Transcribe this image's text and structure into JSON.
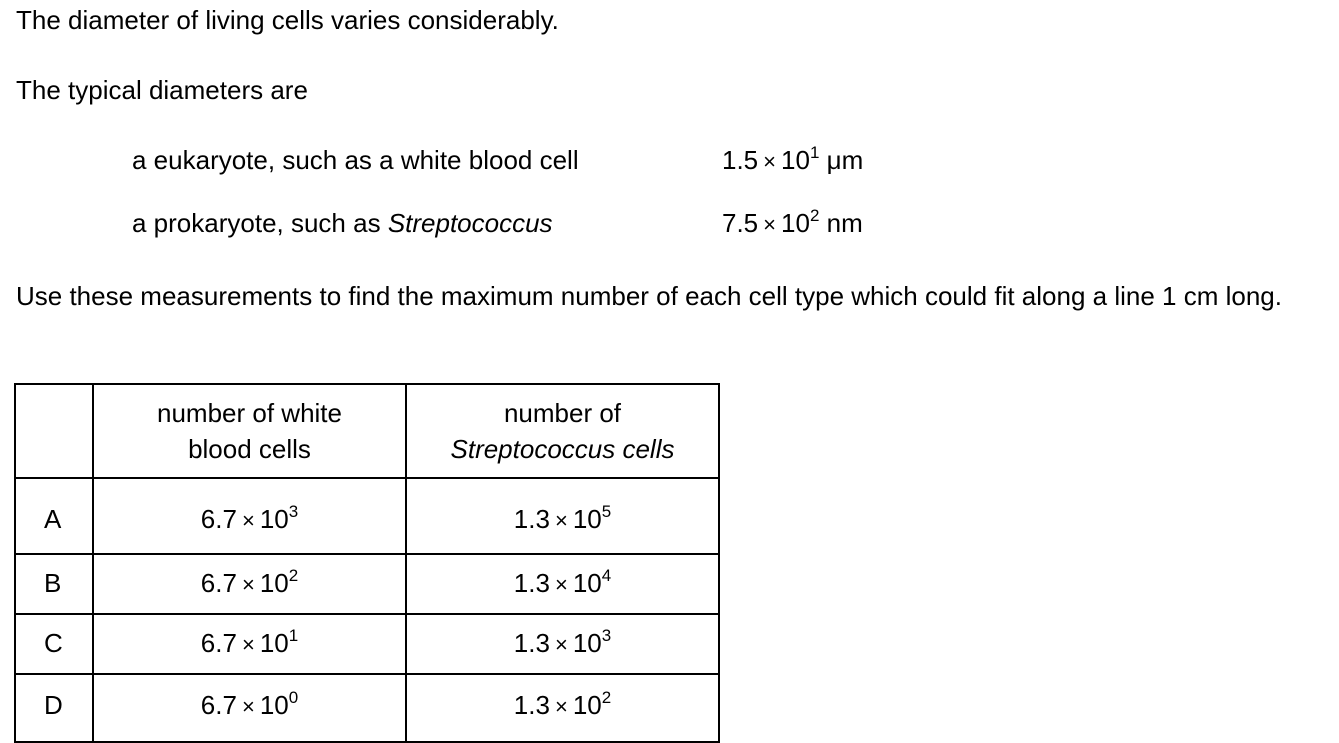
{
  "intro": "The diameter of living cells varies considerably.",
  "typical_intro": "The typical diameters are",
  "cells": [
    {
      "desc": "a eukaryote, such as a white blood cell",
      "desc_prefix": "",
      "desc_italic": "",
      "mantissa": "1.5",
      "times": "×",
      "base": "10",
      "exponent": "1",
      "unit": "μm"
    },
    {
      "desc": "",
      "desc_prefix": "a prokaryote, such as ",
      "desc_italic": "Streptococcus",
      "mantissa": "7.5",
      "times": "×",
      "base": "10",
      "exponent": "2",
      "unit": "nm"
    }
  ],
  "question": "Use these measurements to find the maximum number of each cell type which could fit along a line 1 cm long.",
  "table": {
    "headers": {
      "wbc_line1": "number of white",
      "wbc_line2": "blood cells",
      "strep_line1": "number of",
      "strep_line2": "Streptococcus cells"
    },
    "rows": [
      {
        "letter": "A",
        "wbc_mantissa": "6.7",
        "wbc_exp": "3",
        "strep_mantissa": "1.3",
        "strep_exp": "5"
      },
      {
        "letter": "B",
        "wbc_mantissa": "6.7",
        "wbc_exp": "2",
        "strep_mantissa": "1.3",
        "strep_exp": "4"
      },
      {
        "letter": "C",
        "wbc_mantissa": "6.7",
        "wbc_exp": "1",
        "strep_mantissa": "1.3",
        "strep_exp": "3"
      },
      {
        "letter": "D",
        "wbc_mantissa": "6.7",
        "wbc_exp": "0",
        "strep_mantissa": "1.3",
        "strep_exp": "2"
      }
    ],
    "times": "×",
    "base": "10"
  }
}
